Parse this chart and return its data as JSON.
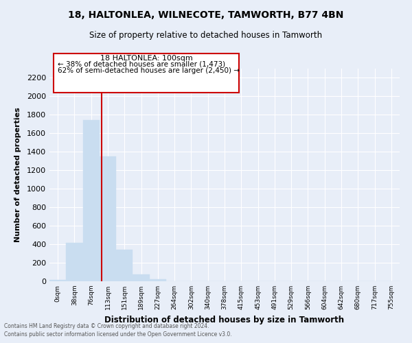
{
  "title1": "18, HALTONLEA, WILNECOTE, TAMWORTH, B77 4BN",
  "title2": "Size of property relative to detached houses in Tamworth",
  "xlabel": "Distribution of detached houses by size in Tamworth",
  "ylabel": "Number of detached properties",
  "bar_labels": [
    "0sqm",
    "38sqm",
    "76sqm",
    "113sqm",
    "151sqm",
    "189sqm",
    "227sqm",
    "264sqm",
    "302sqm",
    "340sqm",
    "378sqm",
    "415sqm",
    "453sqm",
    "491sqm",
    "529sqm",
    "566sqm",
    "604sqm",
    "642sqm",
    "680sqm",
    "717sqm",
    "755sqm"
  ],
  "bar_values": [
    15,
    415,
    1740,
    1350,
    340,
    75,
    25,
    0,
    0,
    0,
    0,
    0,
    0,
    0,
    0,
    0,
    0,
    0,
    0,
    0,
    0
  ],
  "bar_color": "#c9ddf0",
  "vline_x": 2.62,
  "vline_color": "#cc0000",
  "ylim": [
    0,
    2300
  ],
  "yticks": [
    0,
    200,
    400,
    600,
    800,
    1000,
    1200,
    1400,
    1600,
    1800,
    2000,
    2200
  ],
  "annotation_title": "18 HALTONLEA: 100sqm",
  "annotation_line1": "← 38% of detached houses are smaller (1,473)",
  "annotation_line2": "62% of semi-detached houses are larger (2,450) →",
  "annotation_box_color": "#ffffff",
  "annotation_box_edge": "#cc0000",
  "footer1": "Contains HM Land Registry data © Crown copyright and database right 2024.",
  "footer2": "Contains public sector information licensed under the Open Government Licence v3.0.",
  "bg_color": "#e8eef8",
  "plot_bg_color": "#e8eef8",
  "grid_color": "#ffffff"
}
